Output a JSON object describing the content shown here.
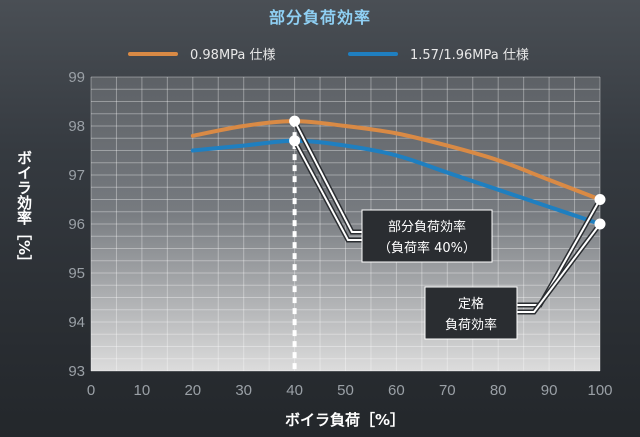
{
  "chart_data": {
    "type": "line",
    "title": "部分負荷効率",
    "xlabel": "ボイラ負荷［%］",
    "ylabel": "ボイラ効率［%］",
    "x": [
      0,
      10,
      20,
      30,
      40,
      50,
      60,
      70,
      80,
      90,
      100
    ],
    "xlim": [
      0,
      100
    ],
    "ylim": [
      93,
      99
    ],
    "xticks": [
      "0",
      "10",
      "20",
      "30",
      "40",
      "50",
      "60",
      "70",
      "80",
      "90",
      "100"
    ],
    "yticks": [
      "93",
      "94",
      "95",
      "96",
      "97",
      "98",
      "99"
    ],
    "grid": true,
    "legend_position": "top",
    "series": [
      {
        "name": "0.98MPa 仕様",
        "color": "#d98a45",
        "points": [
          [
            20,
            97.8
          ],
          [
            30,
            98.0
          ],
          [
            40,
            98.1
          ],
          [
            50,
            98.0
          ],
          [
            60,
            97.85
          ],
          [
            70,
            97.6
          ],
          [
            80,
            97.3
          ],
          [
            90,
            96.9
          ],
          [
            100,
            96.5
          ]
        ]
      },
      {
        "name": "1.57/1.96MPa 仕様",
        "color": "#1f7fc0",
        "points": [
          [
            20,
            97.5
          ],
          [
            30,
            97.6
          ],
          [
            40,
            97.7
          ],
          [
            50,
            97.6
          ],
          [
            60,
            97.4
          ],
          [
            70,
            97.05
          ],
          [
            80,
            96.7
          ],
          [
            90,
            96.35
          ],
          [
            100,
            96.0
          ]
        ]
      }
    ],
    "markers": [
      {
        "series": 0,
        "x": 40,
        "y": 98.1
      },
      {
        "series": 1,
        "x": 40,
        "y": 97.7
      },
      {
        "series": 0,
        "x": 100,
        "y": 96.5
      },
      {
        "series": 1,
        "x": 100,
        "y": 96.0
      }
    ],
    "annotations": [
      {
        "lines": [
          "部分負荷効率",
          "（負荷率 40%）"
        ]
      },
      {
        "lines": [
          "定格",
          "負荷効率"
        ]
      }
    ]
  },
  "colors": {
    "title": "#8fd0f4",
    "plot_bg_top": "#5d6166",
    "plot_bg_bottom": "#dcdcdc",
    "grid": "#ffffff"
  }
}
